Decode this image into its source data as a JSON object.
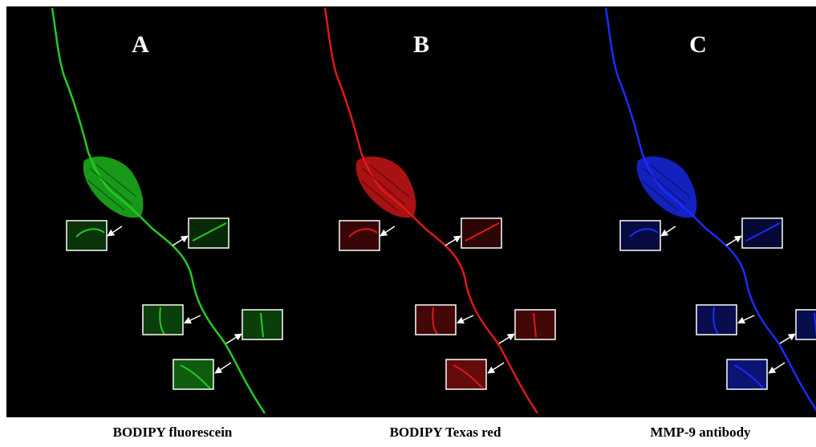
{
  "panels": [
    {
      "label": "A",
      "caption": "BODIPY fluorescein"
    },
    {
      "label": "B",
      "caption": "BODIPY Texas red"
    },
    {
      "label": "C",
      "caption": "MMP-9 antibody"
    }
  ]
}
